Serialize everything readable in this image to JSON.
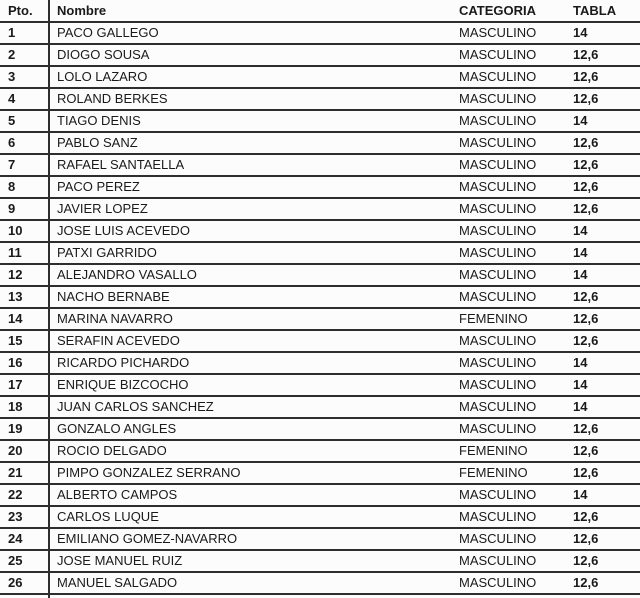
{
  "colors": {
    "text": "#1a1a1a",
    "border": "#2e2e2e",
    "background": "#fcfcfc"
  },
  "table": {
    "headers": {
      "pto": "Pto.",
      "nombre": "Nombre",
      "categoria": "CATEGORIA",
      "tabla": "TABLA"
    },
    "rows": [
      {
        "pto": "1",
        "nombre": "PACO GALLEGO",
        "categoria": "MASCULINO",
        "tabla": "14"
      },
      {
        "pto": "2",
        "nombre": "DIOGO SOUSA",
        "categoria": "MASCULINO",
        "tabla": "12,6"
      },
      {
        "pto": "3",
        "nombre": "LOLO LAZARO",
        "categoria": "MASCULINO",
        "tabla": "12,6"
      },
      {
        "pto": "4",
        "nombre": "ROLAND BERKES",
        "categoria": "MASCULINO",
        "tabla": "12,6"
      },
      {
        "pto": "5",
        "nombre": "TIAGO DENIS",
        "categoria": "MASCULINO",
        "tabla": "14"
      },
      {
        "pto": "6",
        "nombre": "PABLO SANZ",
        "categoria": "MASCULINO",
        "tabla": "12,6"
      },
      {
        "pto": "7",
        "nombre": "RAFAEL SANTAELLA",
        "categoria": "MASCULINO",
        "tabla": "12,6"
      },
      {
        "pto": "8",
        "nombre": "PACO PEREZ",
        "categoria": "MASCULINO",
        "tabla": "12,6"
      },
      {
        "pto": "9",
        "nombre": "JAVIER LOPEZ",
        "categoria": "MASCULINO",
        "tabla": "12,6"
      },
      {
        "pto": "10",
        "nombre": "JOSE LUIS ACEVEDO",
        "categoria": "MASCULINO",
        "tabla": "14"
      },
      {
        "pto": "11",
        "nombre": "PATXI GARRIDO",
        "categoria": "MASCULINO",
        "tabla": "14"
      },
      {
        "pto": "12",
        "nombre": "ALEJANDRO VASALLO",
        "categoria": "MASCULINO",
        "tabla": "14"
      },
      {
        "pto": "13",
        "nombre": "NACHO BERNABE",
        "categoria": "MASCULINO",
        "tabla": "12,6"
      },
      {
        "pto": "14",
        "nombre": "MARINA NAVARRO",
        "categoria": "FEMENINO",
        "tabla": "12,6"
      },
      {
        "pto": "15",
        "nombre": "SERAFIN ACEVEDO",
        "categoria": "MASCULINO",
        "tabla": "12,6"
      },
      {
        "pto": "16",
        "nombre": "RICARDO PICHARDO",
        "categoria": "MASCULINO",
        "tabla": "14"
      },
      {
        "pto": "17",
        "nombre": "ENRIQUE BIZCOCHO",
        "categoria": "MASCULINO",
        "tabla": "14"
      },
      {
        "pto": "18",
        "nombre": "JUAN CARLOS SANCHEZ",
        "categoria": "MASCULINO",
        "tabla": "14"
      },
      {
        "pto": "19",
        "nombre": "GONZALO ANGLES",
        "categoria": "MASCULINO",
        "tabla": "12,6"
      },
      {
        "pto": "20",
        "nombre": "ROCIO DELGADO",
        "categoria": "FEMENINO",
        "tabla": "12,6"
      },
      {
        "pto": "21",
        "nombre": "PIMPO GONZALEZ SERRANO",
        "categoria": "FEMENINO",
        "tabla": "12,6"
      },
      {
        "pto": "22",
        "nombre": "ALBERTO CAMPOS",
        "categoria": "MASCULINO",
        "tabla": "14"
      },
      {
        "pto": "23",
        "nombre": "CARLOS LUQUE",
        "categoria": "MASCULINO",
        "tabla": "12,6"
      },
      {
        "pto": "24",
        "nombre": "EMILIANO GOMEZ-NAVARRO",
        "categoria": "MASCULINO",
        "tabla": "12,6"
      },
      {
        "pto": "25",
        "nombre": "JOSE MANUEL RUIZ",
        "categoria": "MASCULINO",
        "tabla": "12,6"
      },
      {
        "pto": "26",
        "nombre": "MANUEL SALGADO",
        "categoria": "MASCULINO",
        "tabla": "12,6"
      }
    ]
  }
}
